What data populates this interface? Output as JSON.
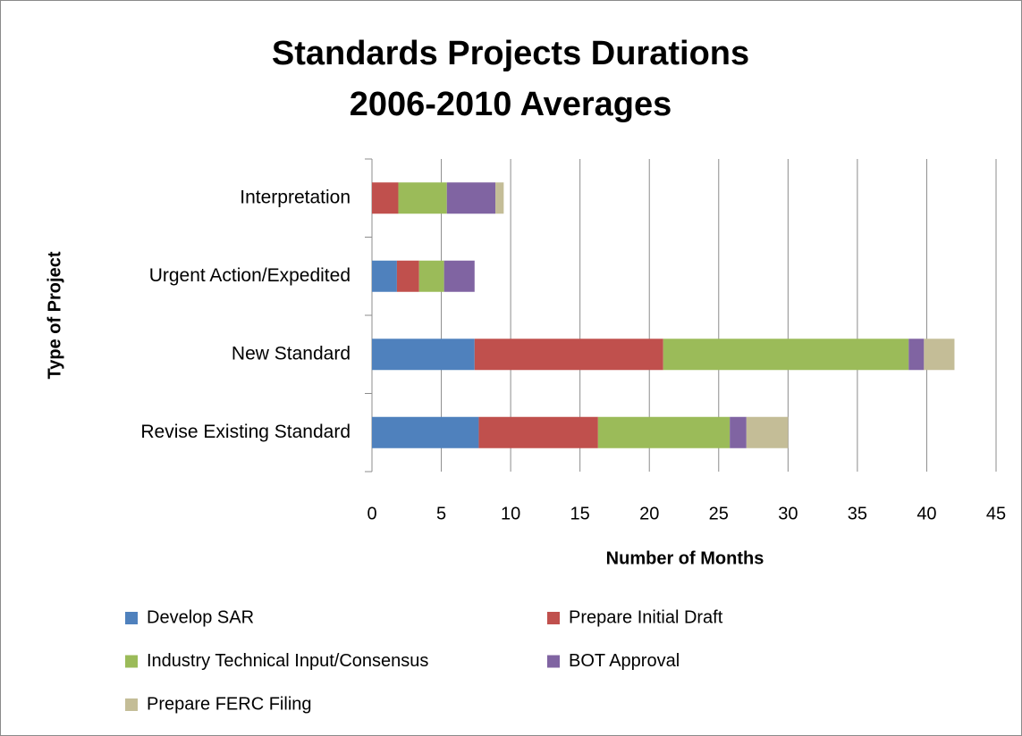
{
  "chart_data": {
    "type": "stacked-bar-horizontal",
    "title": [
      "Standards Projects Durations",
      "2006-2010 Averages"
    ],
    "x_label": "Number of Months",
    "y_label": "Type of Project",
    "categories": [
      "Interpretation",
      "Urgent Action/Expedited",
      "New Standard",
      "Revise Existing Standard"
    ],
    "series": [
      {
        "name": "Develop SAR",
        "color": "#4f81bd",
        "values": [
          0,
          1.8,
          7.4,
          7.7
        ]
      },
      {
        "name": "Prepare Initial Draft",
        "color": "#c0504d",
        "values": [
          1.9,
          1.6,
          13.6,
          8.6
        ]
      },
      {
        "name": "Industry Technical Input/Consensus",
        "color": "#9bbb59",
        "values": [
          3.5,
          1.8,
          17.7,
          9.5
        ]
      },
      {
        "name": "BOT Approval",
        "color": "#8064a2",
        "values": [
          3.5,
          2.2,
          1.1,
          1.2
        ]
      },
      {
        "name": "Prepare FERC Filing",
        "color": "#c4bd97",
        "values": [
          0.6,
          0,
          2.2,
          3.0
        ]
      }
    ],
    "xlim": [
      0,
      45
    ],
    "xticks": [
      0,
      5,
      10,
      15,
      20,
      25,
      30,
      35,
      40,
      45
    ],
    "grid": true,
    "legend": "bottom"
  }
}
